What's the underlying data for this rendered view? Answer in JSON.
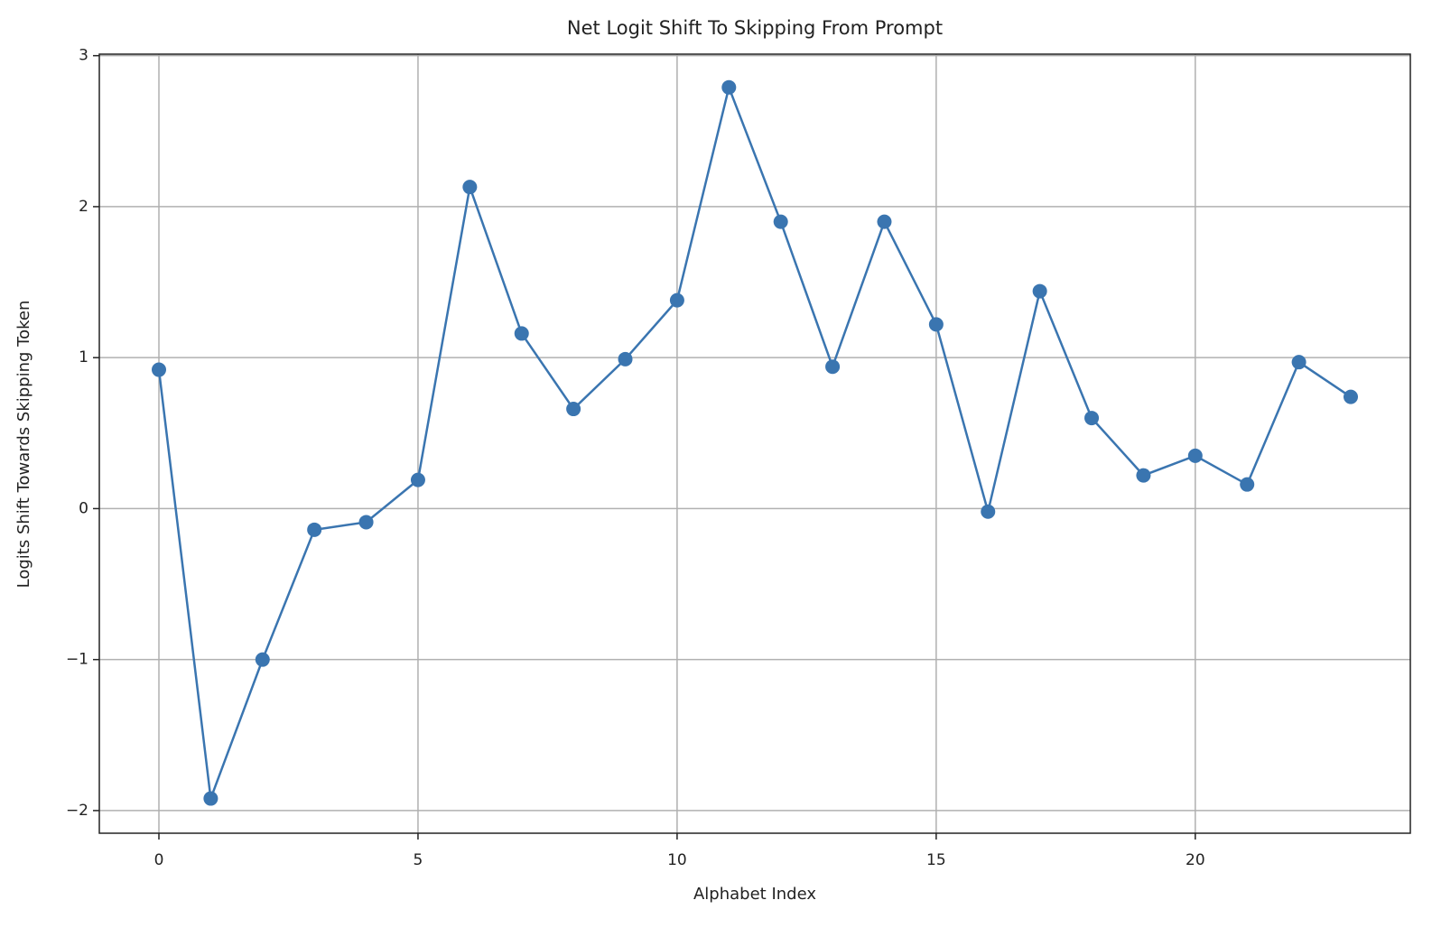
{
  "chart_data": {
    "type": "line",
    "title": "Net Logit Shift To Skipping From Prompt",
    "x_label": "Alphabet Index",
    "y_label": "Logits Shift Towards Skipping Token",
    "x": [
      0,
      1,
      2,
      3,
      4,
      5,
      6,
      7,
      8,
      9,
      10,
      11,
      12,
      13,
      14,
      15,
      16,
      17,
      18,
      19,
      20,
      21,
      22,
      23
    ],
    "series": [
      {
        "name": "Net logit shift",
        "color": "#3a75b0",
        "values": [
          0.92,
          -1.92,
          -1.0,
          -0.14,
          -0.09,
          0.19,
          2.13,
          1.16,
          0.66,
          0.99,
          1.38,
          2.79,
          1.9,
          0.94,
          1.9,
          1.22,
          -0.02,
          1.44,
          0.6,
          0.22,
          0.35,
          0.16,
          0.97,
          0.74
        ]
      }
    ],
    "xlim": [
      -1.15,
      24.15
    ],
    "ylim": [
      -2.15,
      3.01
    ],
    "xticks": [
      0,
      5,
      10,
      15,
      20
    ],
    "yticks": [
      {
        "value": -2,
        "label": "−2"
      },
      {
        "value": -1,
        "label": "−1"
      },
      0,
      1,
      2,
      3
    ],
    "grid": true
  }
}
